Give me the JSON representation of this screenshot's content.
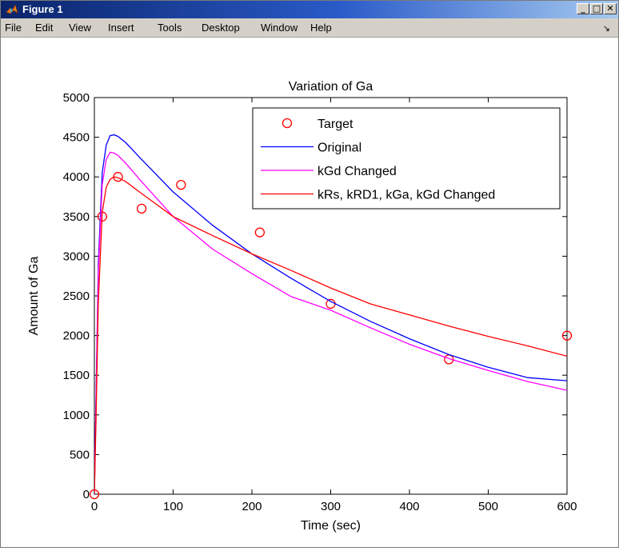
{
  "window": {
    "title": "Figure 1",
    "menu": [
      "File",
      "Edit",
      "View",
      "Insert",
      "Tools",
      "Desktop",
      "Window",
      "Help"
    ],
    "buttons": {
      "minimize": "_",
      "maximize": "□",
      "close": "✕"
    }
  },
  "chart_data": {
    "type": "line",
    "title": "Variation of Ga",
    "xlabel": "Time (sec)",
    "ylabel": "Amount of Ga",
    "xlim": [
      0,
      600
    ],
    "ylim": [
      0,
      5000
    ],
    "xticks": [
      0,
      100,
      200,
      300,
      400,
      500,
      600
    ],
    "yticks": [
      0,
      500,
      1000,
      1500,
      2000,
      2500,
      3000,
      3500,
      4000,
      4500,
      5000
    ],
    "grid": false,
    "legend_position": "top-right",
    "series": [
      {
        "name": "Target",
        "style": "markers",
        "marker": "circle",
        "color": "#ff0000",
        "x": [
          0,
          10,
          30,
          60,
          110,
          210,
          300,
          450,
          600
        ],
        "y": [
          0,
          3500,
          4000,
          3600,
          3900,
          3300,
          2400,
          1700,
          2000
        ]
      },
      {
        "name": "Original",
        "style": "line",
        "color": "#0000ff",
        "x": [
          0,
          2,
          5,
          10,
          15,
          20,
          25,
          30,
          40,
          60,
          100,
          150,
          200,
          250,
          300,
          350,
          400,
          450,
          500,
          550,
          600
        ],
        "y": [
          0,
          1200,
          2900,
          4050,
          4400,
          4520,
          4530,
          4510,
          4430,
          4220,
          3810,
          3390,
          3030,
          2720,
          2430,
          2180,
          1960,
          1760,
          1600,
          1470,
          1430
        ]
      },
      {
        "name": "kGd Changed",
        "style": "line",
        "color": "#ff00ff",
        "x": [
          0,
          2,
          5,
          10,
          15,
          20,
          25,
          30,
          40,
          60,
          100,
          150,
          200,
          250,
          300,
          350,
          400,
          450,
          500,
          550,
          600
        ],
        "y": [
          0,
          1150,
          2800,
          3900,
          4220,
          4310,
          4300,
          4270,
          4170,
          3940,
          3500,
          3090,
          2780,
          2490,
          2320,
          2100,
          1890,
          1710,
          1560,
          1420,
          1310
        ]
      },
      {
        "name": "kRs, kRD1, kGa, kGd Changed",
        "style": "line",
        "color": "#ff0000",
        "x": [
          0,
          2,
          5,
          10,
          15,
          20,
          25,
          30,
          40,
          60,
          100,
          150,
          200,
          250,
          300,
          350,
          400,
          450,
          500,
          550,
          600
        ],
        "y": [
          0,
          900,
          2400,
          3550,
          3870,
          3970,
          4000,
          3990,
          3940,
          3790,
          3500,
          3260,
          3030,
          2820,
          2600,
          2400,
          2260,
          2120,
          1990,
          1870,
          1740
        ]
      }
    ]
  }
}
